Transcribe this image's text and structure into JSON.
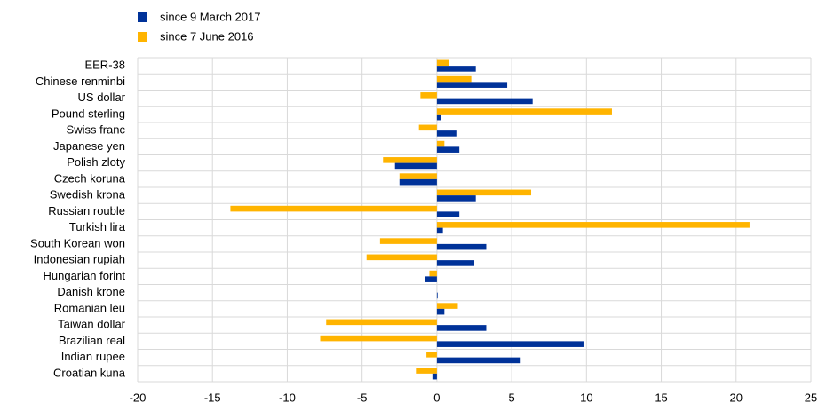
{
  "chart_data": {
    "type": "hbar",
    "categories": [
      "EER-38",
      "Chinese renminbi",
      "US dollar",
      "Pound sterling",
      "Swiss franc",
      "Japanese yen",
      "Polish zloty",
      "Czech koruna",
      "Swedish krona",
      "Russian rouble",
      "Turkish lira",
      "South Korean won",
      "Indonesian rupiah",
      "Hungarian forint",
      "Danish krone",
      "Romanian leu",
      "Taiwan dollar",
      "Brazilian real",
      "Indian rupee",
      "Croatian kuna"
    ],
    "series": [
      {
        "name": "since 9 March 2017",
        "color": "#003299",
        "values": [
          2.6,
          4.7,
          6.4,
          0.3,
          1.3,
          1.5,
          -2.8,
          -2.5,
          2.6,
          1.5,
          0.4,
          3.3,
          2.5,
          -0.8,
          0.05,
          0.5,
          3.3,
          9.8,
          5.6,
          -0.3
        ]
      },
      {
        "name": "since 7 June 2016",
        "color": "#ffb400",
        "values": [
          0.8,
          2.3,
          -1.1,
          11.7,
          -1.2,
          0.5,
          -3.6,
          -2.5,
          6.3,
          -13.8,
          20.9,
          -3.8,
          -4.7,
          -0.5,
          0,
          1.4,
          -7.4,
          -7.8,
          -0.7,
          -1.4
        ]
      }
    ],
    "xlim": [
      -20,
      25
    ],
    "xticks": [
      -20,
      -15,
      -10,
      -5,
      0,
      5,
      10,
      15,
      20,
      25
    ],
    "grid": true
  }
}
